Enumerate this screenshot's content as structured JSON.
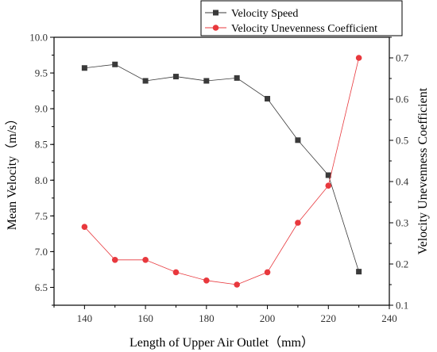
{
  "chart_data": {
    "type": "line",
    "title": "",
    "xlabel": "Length of Upper Air Outlet（mm）",
    "ylabel_left": "Mean Velocity（m/s）",
    "ylabel_right": "Velocity Unevenness Coefficient",
    "xlim": [
      130,
      240
    ],
    "ylim_left": [
      6.25,
      10.0
    ],
    "ylim_right": [
      0.1,
      0.75
    ],
    "x_ticks": [
      "140",
      "160",
      "180",
      "200",
      "220",
      "240"
    ],
    "y_left_ticks": [
      "6.5",
      "7.0",
      "7.5",
      "8.0",
      "8.5",
      "9.0",
      "9.5",
      "10.0"
    ],
    "y_right_ticks": [
      "0.1",
      "0.2",
      "0.3",
      "0.4",
      "0.5",
      "0.6",
      "0.7"
    ],
    "x": [
      140,
      150,
      160,
      170,
      180,
      190,
      200,
      210,
      220,
      230
    ],
    "grid": false,
    "legend_position": "top-right",
    "series": [
      {
        "name": "Velocity Speed",
        "axis": "left",
        "color": "#3a3a3a",
        "marker": "square",
        "values": [
          9.57,
          9.62,
          9.39,
          9.45,
          9.39,
          9.43,
          9.14,
          8.56,
          8.07,
          6.72
        ]
      },
      {
        "name": "Velocity Unevenness Coefficient",
        "axis": "right",
        "color": "#e8383d",
        "marker": "circle",
        "values": [
          0.29,
          0.21,
          0.21,
          0.18,
          0.16,
          0.15,
          0.18,
          0.3,
          0.39,
          0.7
        ]
      }
    ]
  }
}
